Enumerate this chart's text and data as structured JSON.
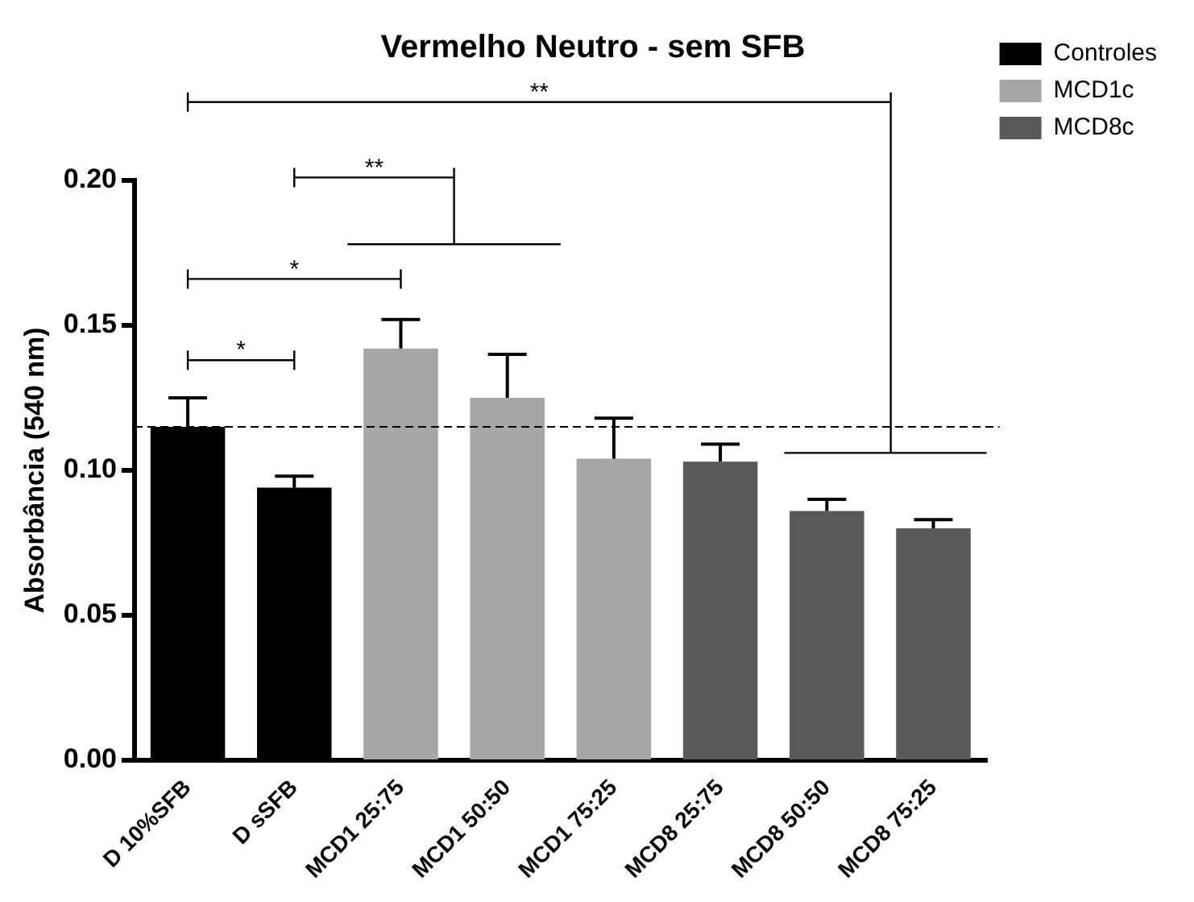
{
  "chart_data": {
    "type": "bar",
    "title": "Vermelho Neutro - sem SFB",
    "ylabel": "Absorbância (540 nm)",
    "categories": [
      "D 10%SFB",
      "D sSFB",
      "MCD1 25:75",
      "MCD1 50:50",
      "MCD1 75:25",
      "MCD8 25:75",
      "MCD8 50:50",
      "MCD8 75:25"
    ],
    "series": [
      {
        "name": "Controles",
        "color": "#000000",
        "values": [
          0.115,
          0.094,
          null,
          null,
          null,
          null,
          null,
          null
        ],
        "errors": [
          0.01,
          0.004,
          null,
          null,
          null,
          null,
          null,
          null
        ]
      },
      {
        "name": "MCD1c",
        "color": "#a6a6a6",
        "values": [
          null,
          null,
          0.142,
          0.125,
          0.104,
          null,
          null,
          null
        ],
        "errors": [
          null,
          null,
          0.01,
          0.015,
          0.014,
          null,
          null,
          null
        ]
      },
      {
        "name": "MCD8c",
        "color": "#595959",
        "values": [
          null,
          null,
          null,
          null,
          null,
          0.103,
          0.086,
          0.08
        ],
        "errors": [
          null,
          null,
          null,
          null,
          null,
          0.006,
          0.004,
          0.003
        ]
      }
    ],
    "ylim": [
      0,
      0.2
    ],
    "yticks": [
      {
        "value": 0,
        "label": "0.00"
      },
      {
        "value": 0.05,
        "label": "0.05"
      },
      {
        "value": 0.1,
        "label": "0.10"
      },
      {
        "value": 0.15,
        "label": "0.15"
      },
      {
        "value": 0.2,
        "label": "0.20"
      }
    ],
    "ref_lines": [
      {
        "axis": "y",
        "value": 0.115,
        "line_style": "dashed"
      }
    ],
    "annotations": [
      "*",
      "*",
      "**",
      "**"
    ],
    "grid": false,
    "legend": "top right"
  }
}
